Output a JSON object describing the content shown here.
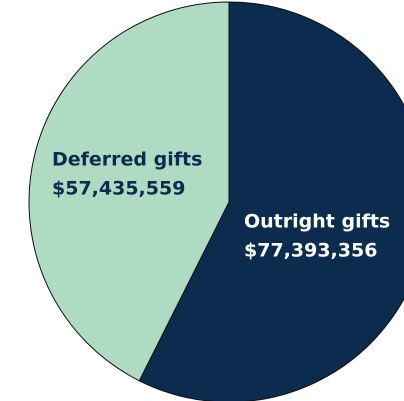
{
  "chart_data": {
    "type": "pie",
    "categories": [
      "Outright gifts",
      "Deferred gifts"
    ],
    "values": [
      77393356,
      57435559
    ],
    "value_labels": [
      "$77,393,356",
      "$57,435,559"
    ],
    "colors": [
      "#0b2b4f",
      "#b0dbc3"
    ],
    "label_colors": [
      "#ffffff",
      "#0b2b4f"
    ]
  }
}
